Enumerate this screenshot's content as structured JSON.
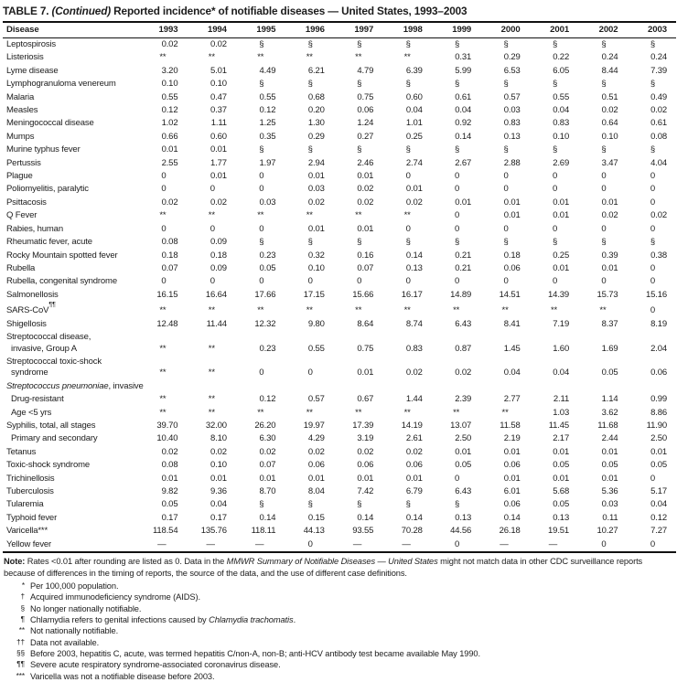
{
  "title": {
    "part1": "TABLE 7.",
    "continued": "(Continued)",
    "part2": "Reported incidence* of notifiable diseases — United States, 1993–2003"
  },
  "table": {
    "columns": [
      "Disease",
      "1993",
      "1994",
      "1995",
      "1996",
      "1997",
      "1998",
      "1999",
      "2000",
      "2001",
      "2002",
      "2003"
    ],
    "rows": [
      {
        "label": "Leptospirosis",
        "values": [
          "0.02",
          "0.02",
          "§",
          "§",
          "§",
          "§",
          "§",
          "§",
          "§",
          "§",
          "§"
        ]
      },
      {
        "label": "Listeriosis",
        "values": [
          "**",
          "**",
          "**",
          "**",
          "**",
          "**",
          "0.31",
          "0.29",
          "0.22",
          "0.24",
          "0.24"
        ]
      },
      {
        "label": "Lyme disease",
        "values": [
          "3.20",
          "5.01",
          "4.49",
          "6.21",
          "4.79",
          "6.39",
          "5.99",
          "6.53",
          "6.05",
          "8.44",
          "7.39"
        ]
      },
      {
        "label": "Lymphogranuloma venereum",
        "values": [
          "0.10",
          "0.10",
          "§",
          "§",
          "§",
          "§",
          "§",
          "§",
          "§",
          "§",
          "§"
        ]
      },
      {
        "label": "Malaria",
        "values": [
          "0.55",
          "0.47",
          "0.55",
          "0.68",
          "0.75",
          "0.60",
          "0.61",
          "0.57",
          "0.55",
          "0.51",
          "0.49"
        ]
      },
      {
        "label": "Measles",
        "values": [
          "0.12",
          "0.37",
          "0.12",
          "0.20",
          "0.06",
          "0.04",
          "0.04",
          "0.03",
          "0.04",
          "0.02",
          "0.02"
        ]
      },
      {
        "label": "Meningococcal disease",
        "values": [
          "1.02",
          "1.11",
          "1.25",
          "1.30",
          "1.24",
          "1.01",
          "0.92",
          "0.83",
          "0.83",
          "0.64",
          "0.61"
        ]
      },
      {
        "label": "Mumps",
        "values": [
          "0.66",
          "0.60",
          "0.35",
          "0.29",
          "0.27",
          "0.25",
          "0.14",
          "0.13",
          "0.10",
          "0.10",
          "0.08"
        ]
      },
      {
        "label": "Murine typhus fever",
        "values": [
          "0.01",
          "0.01",
          "§",
          "§",
          "§",
          "§",
          "§",
          "§",
          "§",
          "§",
          "§"
        ]
      },
      {
        "label": "Pertussis",
        "values": [
          "2.55",
          "1.77",
          "1.97",
          "2.94",
          "2.46",
          "2.74",
          "2.67",
          "2.88",
          "2.69",
          "3.47",
          "4.04"
        ]
      },
      {
        "label": "Plague",
        "values": [
          "0",
          "0.01",
          "0",
          "0.01",
          "0.01",
          "0",
          "0",
          "0",
          "0",
          "0",
          "0"
        ]
      },
      {
        "label": "Poliomyelitis, paralytic",
        "values": [
          "0",
          "0",
          "0",
          "0.03",
          "0.02",
          "0.01",
          "0",
          "0",
          "0",
          "0",
          "0"
        ]
      },
      {
        "label": "Psittacosis",
        "values": [
          "0.02",
          "0.02",
          "0.03",
          "0.02",
          "0.02",
          "0.02",
          "0.01",
          "0.01",
          "0.01",
          "0.01",
          "0"
        ]
      },
      {
        "label": "Q Fever",
        "values": [
          "**",
          "**",
          "**",
          "**",
          "**",
          "**",
          "0",
          "0.01",
          "0.01",
          "0.02",
          "0.02"
        ]
      },
      {
        "label": "Rabies, human",
        "values": [
          "0",
          "0",
          "0",
          "0.01",
          "0.01",
          "0",
          "0",
          "0",
          "0",
          "0",
          "0"
        ]
      },
      {
        "label": "Rheumatic fever, acute",
        "values": [
          "0.08",
          "0.09",
          "§",
          "§",
          "§",
          "§",
          "§",
          "§",
          "§",
          "§",
          "§"
        ]
      },
      {
        "label": "Rocky Mountain spotted fever",
        "values": [
          "0.18",
          "0.18",
          "0.23",
          "0.32",
          "0.16",
          "0.14",
          "0.21",
          "0.18",
          "0.25",
          "0.39",
          "0.38"
        ]
      },
      {
        "label": "Rubella",
        "values": [
          "0.07",
          "0.09",
          "0.05",
          "0.10",
          "0.07",
          "0.13",
          "0.21",
          "0.06",
          "0.01",
          "0.01",
          "0"
        ]
      },
      {
        "label": "Rubella, congenital syndrome",
        "values": [
          "0",
          "0",
          "0",
          "0",
          "0",
          "0",
          "0",
          "0",
          "0",
          "0",
          "0"
        ]
      },
      {
        "label": "Salmonellosis",
        "values": [
          "16.15",
          "16.64",
          "17.66",
          "17.15",
          "15.66",
          "16.17",
          "14.89",
          "14.51",
          "14.39",
          "15.73",
          "15.16"
        ]
      },
      {
        "label": "SARS-CoV",
        "sup": "¶¶",
        "values": [
          "**",
          "**",
          "**",
          "**",
          "**",
          "**",
          "**",
          "**",
          "**",
          "**",
          "0"
        ]
      },
      {
        "label": "Shigellosis",
        "values": [
          "12.48",
          "11.44",
          "12.32",
          "9.80",
          "8.64",
          "8.74",
          "6.43",
          "8.41",
          "7.19",
          "8.37",
          "8.19"
        ]
      },
      {
        "label": "Streptococcal disease,",
        "label2": "invasive, Group A",
        "values": [
          "**",
          "**",
          "0.23",
          "0.55",
          "0.75",
          "0.83",
          "0.87",
          "1.45",
          "1.60",
          "1.69",
          "2.04"
        ]
      },
      {
        "label": "Streptococcal toxic-shock",
        "label2": "syndrome",
        "values": [
          "**",
          "**",
          "0",
          "0",
          "0.01",
          "0.02",
          "0.02",
          "0.04",
          "0.04",
          "0.05",
          "0.06"
        ]
      },
      {
        "label_italic": "Streptococcus pneumoniae",
        "label": ", invasive",
        "group": true
      },
      {
        "label": "Drug-resistant",
        "indent": 1,
        "values": [
          "**",
          "**",
          "0.12",
          "0.57",
          "0.67",
          "1.44",
          "2.39",
          "2.77",
          "2.11",
          "1.14",
          "0.99"
        ]
      },
      {
        "label": "Age <5 yrs",
        "indent": 1,
        "values": [
          "**",
          "**",
          "**",
          "**",
          "**",
          "**",
          "**",
          "**",
          "1.03",
          "3.62",
          "8.86"
        ]
      },
      {
        "label": "Syphilis, total, all stages",
        "values": [
          "39.70",
          "32.00",
          "26.20",
          "19.97",
          "17.39",
          "14.19",
          "13.07",
          "11.58",
          "11.45",
          "11.68",
          "11.90"
        ]
      },
      {
        "label": "Primary and secondary",
        "indent": 1,
        "values": [
          "10.40",
          "8.10",
          "6.30",
          "4.29",
          "3.19",
          "2.61",
          "2.50",
          "2.19",
          "2.17",
          "2.44",
          "2.50"
        ]
      },
      {
        "label": "Tetanus",
        "values": [
          "0.02",
          "0.02",
          "0.02",
          "0.02",
          "0.02",
          "0.02",
          "0.01",
          "0.01",
          "0.01",
          "0.01",
          "0.01"
        ]
      },
      {
        "label": "Toxic-shock syndrome",
        "values": [
          "0.08",
          "0.10",
          "0.07",
          "0.06",
          "0.06",
          "0.06",
          "0.05",
          "0.06",
          "0.05",
          "0.05",
          "0.05"
        ]
      },
      {
        "label": "Trichinellosis",
        "values": [
          "0.01",
          "0.01",
          "0.01",
          "0.01",
          "0.01",
          "0.01",
          "0",
          "0.01",
          "0.01",
          "0.01",
          "0"
        ]
      },
      {
        "label": "Tuberculosis",
        "values": [
          "9.82",
          "9.36",
          "8.70",
          "8.04",
          "7.42",
          "6.79",
          "6.43",
          "6.01",
          "5.68",
          "5.36",
          "5.17"
        ]
      },
      {
        "label": "Tularemia",
        "values": [
          "0.05",
          "0.04",
          "§",
          "§",
          "§",
          "§",
          "§",
          "0.06",
          "0.05",
          "0.03",
          "0.04"
        ]
      },
      {
        "label": "Typhoid fever",
        "values": [
          "0.17",
          "0.17",
          "0.14",
          "0.15",
          "0.14",
          "0.14",
          "0.13",
          "0.14",
          "0.13",
          "0.11",
          "0.12"
        ]
      },
      {
        "label": "Varicella***",
        "values": [
          "118.54",
          "135.76",
          "118.11",
          "44.13",
          "93.55",
          "70.28",
          "44.56",
          "26.18",
          "19.51",
          "10.27",
          "7.27"
        ]
      },
      {
        "label": "Yellow fever",
        "values": [
          "—",
          "—",
          "—",
          "0",
          "—",
          "—",
          "0",
          "—",
          "—",
          "0",
          "0"
        ]
      }
    ]
  },
  "note": {
    "label": "Note:",
    "pre": " Rates <0.01 after rounding are listed as 0. Data in the ",
    "italic": "MMWR Summary of Notifiable Diseases — United States",
    "post": " might not match data in other CDC surveillance reports because of differences in the timing of reports, the source of the data, and the use of different case definitions."
  },
  "footnotes": [
    {
      "symbol": "*",
      "pre": "Per 100,000 population.",
      "italic": "",
      "post": ""
    },
    {
      "symbol": "†",
      "pre": "Acquired immunodeficiency syndrome (AIDS).",
      "italic": "",
      "post": ""
    },
    {
      "symbol": "§",
      "pre": "No longer nationally notifiable.",
      "italic": "",
      "post": ""
    },
    {
      "symbol": "¶",
      "pre": "Chlamydia refers to genital infections caused by ",
      "italic": "Chlamydia trachomatis",
      "post": "."
    },
    {
      "symbol": "**",
      "pre": "Not nationally notifiable.",
      "italic": "",
      "post": ""
    },
    {
      "symbol": "††",
      "pre": "Data not available.",
      "italic": "",
      "post": ""
    },
    {
      "symbol": "§§",
      "pre": "Before 2003, hepatitis C, acute, was termed hepatitis C/non-A, non-B; anti-HCV antibody test became available May 1990.",
      "italic": "",
      "post": ""
    },
    {
      "symbol": "¶¶",
      "pre": "Severe acute respiratory syndrome-associated coronavirus disease.",
      "italic": "",
      "post": ""
    },
    {
      "symbol": "***",
      "pre": "Varicella was not a notifiable disease before 2003.",
      "italic": "",
      "post": ""
    }
  ]
}
